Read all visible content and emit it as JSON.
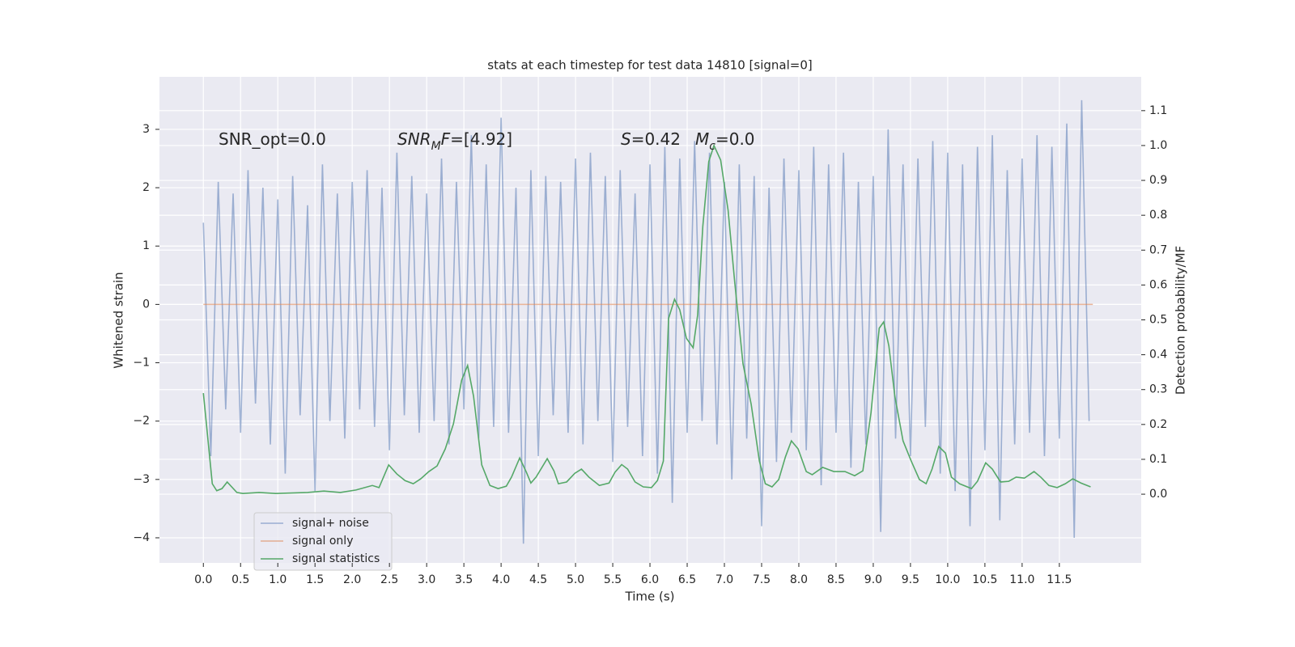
{
  "chart_data": {
    "type": "line",
    "title": "stats at each timestep for test data 14810 [signal=0]",
    "xlabel": "Time (s)",
    "ylabel": "Whitened strain",
    "y2label": "Detection probability/MF",
    "background": "#eaeaf2",
    "grid": true,
    "xlim": [
      -0.59,
      12.6
    ],
    "ylim": [
      -4.43,
      3.9
    ],
    "y2lim": [
      -0.197,
      1.197
    ],
    "xticks": [
      {
        "value": 0,
        "label": "0.0"
      },
      0.5,
      {
        "value": 1,
        "label": "1.0"
      },
      1.5,
      {
        "value": 2,
        "label": "2.0"
      },
      2.5,
      {
        "value": 3,
        "label": "3.0"
      },
      3.5,
      {
        "value": 4,
        "label": "4.0"
      },
      4.5,
      {
        "value": 5,
        "label": "5.0"
      },
      5.5,
      {
        "value": 6,
        "label": "6.0"
      },
      6.5,
      {
        "value": 7,
        "label": "7.0"
      },
      7.5,
      {
        "value": 8,
        "label": "8.0"
      },
      8.5,
      {
        "value": 9,
        "label": "9.0"
      },
      9.5,
      {
        "value": 10,
        "label": "10.0"
      },
      10.5,
      {
        "value": 11,
        "label": "11.0"
      },
      11.5
    ],
    "yticks": [
      {
        "value": -4,
        "label": "−4"
      },
      {
        "value": -3,
        "label": "−3"
      },
      {
        "value": -2,
        "label": "−2"
      },
      {
        "value": -1,
        "label": "−1"
      },
      0,
      1,
      2,
      3
    ],
    "y2ticks": [
      {
        "value": 0,
        "label": "0.0"
      },
      0.1,
      0.2,
      0.3,
      0.4,
      0.5,
      0.6,
      0.7,
      0.8,
      0.9,
      {
        "value": 1,
        "label": "1.0"
      },
      1.1
    ],
    "annotations": [
      [
        {
          "text": "SNR_opt=0.0",
          "italic": false,
          "subscript": false
        }
      ],
      [
        {
          "text": "SNR",
          "italic": true,
          "subscript": false
        },
        {
          "text": "M",
          "italic": true,
          "subscript": true
        },
        {
          "text": "F",
          "italic": true,
          "subscript": false
        },
        {
          "text": "=[4.92]",
          "italic": false,
          "subscript": false
        }
      ],
      [
        {
          "text": "S",
          "italic": true,
          "subscript": false
        },
        {
          "text": "=0.42",
          "italic": false,
          "subscript": false
        }
      ],
      [
        {
          "text": "M",
          "italic": true,
          "subscript": false
        },
        {
          "text": "c",
          "italic": true,
          "subscript": true
        },
        {
          "text": "=0.0",
          "italic": false,
          "subscript": false
        }
      ]
    ],
    "series": [
      {
        "name": "signal+ noise",
        "color": "#4c72b0",
        "opacity": 0.5,
        "axis": "y",
        "x": [
          0.0,
          0.1,
          0.2,
          0.3,
          0.4,
          0.5,
          0.6,
          0.7,
          0.8,
          0.9,
          1.0,
          1.1,
          1.2,
          1.3,
          1.4,
          1.5,
          1.6,
          1.7,
          1.8,
          1.9,
          2.0,
          2.1,
          2.2,
          2.3,
          2.4,
          2.5,
          2.6,
          2.7,
          2.8,
          2.9,
          3.0,
          3.1,
          3.2,
          3.3,
          3.4,
          3.5,
          3.6,
          3.7,
          3.8,
          3.9,
          4.0,
          4.1,
          4.2,
          4.3,
          4.4,
          4.5,
          4.6,
          4.7,
          4.8,
          4.9,
          5.0,
          5.1,
          5.2,
          5.3,
          5.4,
          5.5,
          5.6,
          5.7,
          5.8,
          5.9,
          6.0,
          6.1,
          6.2,
          6.3,
          6.4,
          6.5,
          6.6,
          6.7,
          6.8,
          6.9,
          7.0,
          7.1,
          7.2,
          7.3,
          7.4,
          7.5,
          7.6,
          7.7,
          7.8,
          7.9,
          8.0,
          8.1,
          8.2,
          8.3,
          8.4,
          8.5,
          8.6,
          8.7,
          8.8,
          8.9,
          9.0,
          9.1,
          9.2,
          9.3,
          9.4,
          9.5,
          9.6,
          9.7,
          9.8,
          9.9,
          10.0,
          10.1,
          10.2,
          10.3,
          10.4,
          10.5,
          10.6,
          10.7,
          10.8,
          10.9,
          11.0,
          11.1,
          11.2,
          11.3,
          11.4,
          11.5,
          11.6,
          11.7,
          11.8,
          11.9
        ],
        "values": [
          1.4,
          -2.6,
          2.1,
          -1.8,
          1.9,
          -2.2,
          2.3,
          -1.7,
          2.0,
          -2.4,
          1.8,
          -2.9,
          2.2,
          -1.9,
          1.7,
          -3.2,
          2.4,
          -2.0,
          1.9,
          -2.3,
          2.1,
          -1.8,
          2.3,
          -2.1,
          2.0,
          -2.5,
          2.6,
          -1.9,
          2.2,
          -2.2,
          1.9,
          -2.0,
          2.5,
          -2.4,
          2.1,
          -1.8,
          2.9,
          -2.3,
          2.4,
          -2.1,
          3.2,
          -2.2,
          2.0,
          -4.1,
          2.3,
          -2.6,
          2.2,
          -1.9,
          2.1,
          -2.2,
          2.5,
          -2.4,
          2.6,
          -2.0,
          2.2,
          -2.7,
          2.3,
          -2.1,
          1.9,
          -2.6,
          2.4,
          -2.9,
          2.7,
          -3.4,
          2.5,
          -2.2,
          2.8,
          -2.0,
          2.6,
          -2.4,
          2.1,
          -3.0,
          2.4,
          -2.3,
          2.2,
          -3.8,
          2.0,
          -2.7,
          2.5,
          -2.2,
          2.3,
          -2.5,
          2.7,
          -3.1,
          2.4,
          -2.2,
          2.6,
          -2.8,
          2.1,
          -2.4,
          2.2,
          -3.9,
          3.0,
          -2.3,
          2.4,
          -2.6,
          2.5,
          -2.1,
          2.8,
          -2.9,
          2.6,
          -3.2,
          2.4,
          -3.8,
          2.7,
          -2.5,
          2.9,
          -3.7,
          2.3,
          -2.4,
          2.5,
          -2.2,
          2.9,
          -2.6,
          2.7,
          -2.3,
          3.1,
          -4.0,
          3.5,
          -2.0
        ]
      },
      {
        "name": "signal only",
        "color": "#dd8452",
        "opacity": 0.6,
        "axis": "y",
        "x": [
          0.0,
          11.95
        ],
        "values": [
          0,
          0
        ]
      },
      {
        "name": "signal statistics",
        "color": "#55a868",
        "opacity": 1,
        "axis": "y2",
        "x": [
          0.0,
          0.12,
          0.18,
          0.25,
          0.32,
          0.45,
          0.53,
          0.75,
          0.97,
          1.4,
          1.62,
          1.84,
          2.05,
          2.27,
          2.36,
          2.49,
          2.6,
          2.71,
          2.82,
          2.92,
          3.03,
          3.14,
          3.25,
          3.36,
          3.47,
          3.55,
          3.63,
          3.74,
          3.85,
          3.96,
          4.07,
          4.14,
          4.25,
          4.34,
          4.4,
          4.47,
          4.62,
          4.71,
          4.77,
          4.88,
          4.99,
          5.08,
          5.18,
          5.32,
          5.45,
          5.53,
          5.62,
          5.7,
          5.8,
          5.91,
          6.02,
          6.1,
          6.18,
          6.25,
          6.33,
          6.4,
          6.49,
          6.58,
          6.64,
          6.71,
          6.79,
          6.86,
          6.95,
          7.05,
          7.14,
          7.25,
          7.36,
          7.47,
          7.55,
          7.64,
          7.73,
          7.82,
          7.9,
          7.99,
          8.1,
          8.18,
          8.32,
          8.47,
          8.62,
          8.75,
          8.86,
          8.97,
          9.08,
          9.14,
          9.21,
          9.29,
          9.4,
          9.51,
          9.62,
          9.71,
          9.79,
          9.88,
          9.97,
          10.05,
          10.16,
          10.32,
          10.4,
          10.51,
          10.6,
          10.71,
          10.82,
          10.92,
          11.03,
          11.16,
          11.25,
          11.36,
          11.47,
          11.58,
          11.68,
          11.79,
          11.92
        ],
        "values": [
          0.29,
          0.03,
          0.01,
          0.016,
          0.035,
          0.005,
          0.002,
          0.005,
          0.002,
          0.005,
          0.009,
          0.005,
          0.012,
          0.025,
          0.019,
          0.084,
          0.058,
          0.039,
          0.03,
          0.044,
          0.065,
          0.081,
          0.13,
          0.202,
          0.327,
          0.369,
          0.281,
          0.084,
          0.025,
          0.016,
          0.023,
          0.049,
          0.104,
          0.063,
          0.032,
          0.049,
          0.102,
          0.067,
          0.03,
          0.035,
          0.06,
          0.072,
          0.049,
          0.025,
          0.032,
          0.063,
          0.085,
          0.072,
          0.035,
          0.021,
          0.019,
          0.039,
          0.095,
          0.504,
          0.559,
          0.529,
          0.447,
          0.42,
          0.513,
          0.768,
          0.954,
          1.0,
          0.958,
          0.814,
          0.605,
          0.374,
          0.258,
          0.095,
          0.03,
          0.021,
          0.042,
          0.107,
          0.153,
          0.13,
          0.065,
          0.056,
          0.077,
          0.065,
          0.065,
          0.053,
          0.067,
          0.234,
          0.476,
          0.494,
          0.425,
          0.281,
          0.153,
          0.095,
          0.042,
          0.03,
          0.072,
          0.137,
          0.118,
          0.049,
          0.03,
          0.016,
          0.037,
          0.09,
          0.072,
          0.035,
          0.037,
          0.049,
          0.046,
          0.065,
          0.049,
          0.025,
          0.019,
          0.03,
          0.044,
          0.032,
          0.021
        ]
      }
    ]
  }
}
